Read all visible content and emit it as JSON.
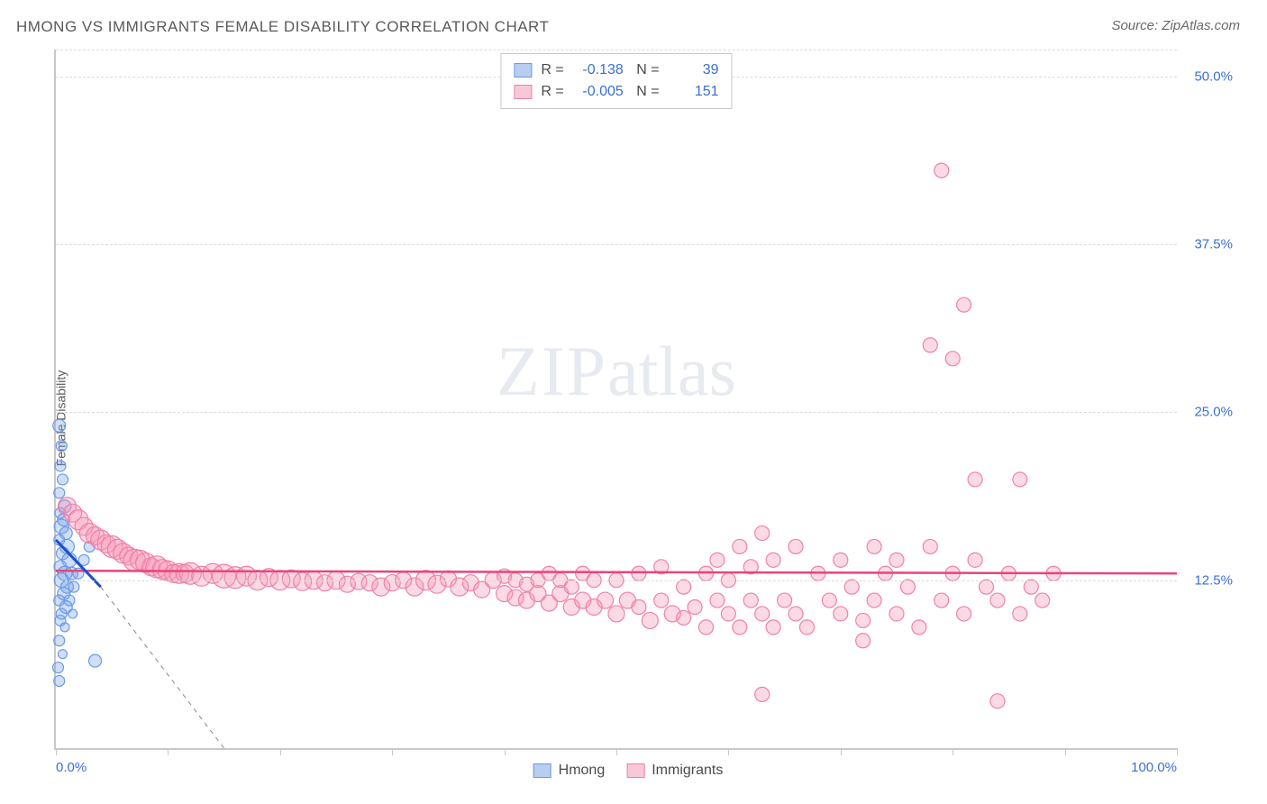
{
  "title": "HMONG VS IMMIGRANTS FEMALE DISABILITY CORRELATION CHART",
  "source": "Source: ZipAtlas.com",
  "ylabel": "Female Disability",
  "watermark": {
    "zip": "ZIP",
    "atlas": "atlas"
  },
  "chart": {
    "type": "scatter",
    "xlim": [
      0,
      100
    ],
    "ylim": [
      0,
      52
    ],
    "xticks": [
      0,
      10,
      20,
      30,
      40,
      50,
      60,
      70,
      80,
      90,
      100
    ],
    "xtick_labels": {
      "0": "0.0%",
      "100": "100.0%"
    },
    "yticks": [
      12.5,
      25.0,
      37.5,
      50.0
    ],
    "ytick_labels": [
      "12.5%",
      "25.0%",
      "37.5%",
      "50.0%"
    ],
    "grid_color": "#dcdcdc",
    "axis_color": "#c8c8c8",
    "background": "#ffffff",
    "series": [
      {
        "name": "Hmong",
        "color_fill": "rgba(120,160,230,0.35)",
        "color_stroke": "#6a9be8",
        "swatch_fill": "#b8cdf0",
        "swatch_border": "#6a9be8",
        "R": "-0.138",
        "N": "39",
        "trend": {
          "x1": 0,
          "y1": 15.5,
          "x2": 4,
          "y2": 12.0,
          "dash_x2": 15,
          "dash_y2": 0,
          "color": "#1a4fd0"
        },
        "points": [
          {
            "x": 0.3,
            "y": 24,
            "r": 7
          },
          {
            "x": 0.5,
            "y": 22.5,
            "r": 6
          },
          {
            "x": 0.4,
            "y": 21,
            "r": 6
          },
          {
            "x": 0.6,
            "y": 20,
            "r": 6
          },
          {
            "x": 0.3,
            "y": 19,
            "r": 6
          },
          {
            "x": 0.8,
            "y": 18,
            "r": 7
          },
          {
            "x": 0.4,
            "y": 17.5,
            "r": 6
          },
          {
            "x": 0.7,
            "y": 17,
            "r": 7
          },
          {
            "x": 0.5,
            "y": 16.5,
            "r": 8
          },
          {
            "x": 0.9,
            "y": 16,
            "r": 7
          },
          {
            "x": 0.3,
            "y": 15.5,
            "r": 6
          },
          {
            "x": 1.0,
            "y": 15,
            "r": 8
          },
          {
            "x": 0.6,
            "y": 14.5,
            "r": 7
          },
          {
            "x": 1.2,
            "y": 14,
            "r": 8
          },
          {
            "x": 0.4,
            "y": 13.5,
            "r": 7
          },
          {
            "x": 0.8,
            "y": 13,
            "r": 8
          },
          {
            "x": 1.4,
            "y": 13,
            "r": 7
          },
          {
            "x": 0.5,
            "y": 12.5,
            "r": 8
          },
          {
            "x": 1.0,
            "y": 12,
            "r": 7
          },
          {
            "x": 1.6,
            "y": 12,
            "r": 6
          },
          {
            "x": 0.7,
            "y": 11.5,
            "r": 7
          },
          {
            "x": 0.3,
            "y": 11,
            "r": 6
          },
          {
            "x": 1.2,
            "y": 11,
            "r": 6
          },
          {
            "x": 0.9,
            "y": 10.5,
            "r": 7
          },
          {
            "x": 0.5,
            "y": 10,
            "r": 6
          },
          {
            "x": 1.5,
            "y": 10,
            "r": 5
          },
          {
            "x": 0.4,
            "y": 9.5,
            "r": 6
          },
          {
            "x": 0.8,
            "y": 9,
            "r": 5
          },
          {
            "x": 0.3,
            "y": 8,
            "r": 6
          },
          {
            "x": 0.6,
            "y": 7,
            "r": 5
          },
          {
            "x": 0.2,
            "y": 6,
            "r": 6
          },
          {
            "x": 0.3,
            "y": 5,
            "r": 6
          },
          {
            "x": 3.5,
            "y": 6.5,
            "r": 7
          },
          {
            "x": 3.0,
            "y": 15,
            "r": 6
          },
          {
            "x": 2.5,
            "y": 14,
            "r": 6
          },
          {
            "x": 2.0,
            "y": 13,
            "r": 6
          }
        ]
      },
      {
        "name": "Immigrants",
        "color_fill": "rgba(245,150,180,0.35)",
        "color_stroke": "#f080a8",
        "swatch_fill": "#f8c8d8",
        "swatch_border": "#f080a8",
        "R": "-0.005",
        "N": "151",
        "trend": {
          "x1": 0,
          "y1": 13.2,
          "x2": 100,
          "y2": 13.0,
          "color": "#e8457a"
        },
        "points": [
          {
            "x": 1,
            "y": 18,
            "r": 10
          },
          {
            "x": 1.5,
            "y": 17.5,
            "r": 10
          },
          {
            "x": 2,
            "y": 17,
            "r": 11
          },
          {
            "x": 2.5,
            "y": 16.5,
            "r": 10
          },
          {
            "x": 3,
            "y": 16,
            "r": 11
          },
          {
            "x": 3.5,
            "y": 15.8,
            "r": 10
          },
          {
            "x": 4,
            "y": 15.5,
            "r": 11
          },
          {
            "x": 4.5,
            "y": 15.2,
            "r": 10
          },
          {
            "x": 5,
            "y": 15,
            "r": 12
          },
          {
            "x": 5.5,
            "y": 14.8,
            "r": 11
          },
          {
            "x": 6,
            "y": 14.5,
            "r": 11
          },
          {
            "x": 6.5,
            "y": 14.3,
            "r": 10
          },
          {
            "x": 7,
            "y": 14,
            "r": 12
          },
          {
            "x": 7.5,
            "y": 14,
            "r": 11
          },
          {
            "x": 8,
            "y": 13.8,
            "r": 11
          },
          {
            "x": 8.5,
            "y": 13.5,
            "r": 10
          },
          {
            "x": 9,
            "y": 13.5,
            "r": 12
          },
          {
            "x": 9.5,
            "y": 13.3,
            "r": 11
          },
          {
            "x": 10,
            "y": 13.2,
            "r": 11
          },
          {
            "x": 10.5,
            "y": 13,
            "r": 10
          },
          {
            "x": 11,
            "y": 13,
            "r": 11
          },
          {
            "x": 11.5,
            "y": 13,
            "r": 10
          },
          {
            "x": 12,
            "y": 13,
            "r": 12
          },
          {
            "x": 13,
            "y": 12.8,
            "r": 11
          },
          {
            "x": 14,
            "y": 13,
            "r": 11
          },
          {
            "x": 15,
            "y": 12.8,
            "r": 13
          },
          {
            "x": 16,
            "y": 12.7,
            "r": 12
          },
          {
            "x": 17,
            "y": 12.8,
            "r": 11
          },
          {
            "x": 18,
            "y": 12.5,
            "r": 11
          },
          {
            "x": 19,
            "y": 12.7,
            "r": 10
          },
          {
            "x": 20,
            "y": 12.5,
            "r": 11
          },
          {
            "x": 21,
            "y": 12.6,
            "r": 10
          },
          {
            "x": 22,
            "y": 12.4,
            "r": 10
          },
          {
            "x": 23,
            "y": 12.5,
            "r": 10
          },
          {
            "x": 24,
            "y": 12.3,
            "r": 9
          },
          {
            "x": 25,
            "y": 12.5,
            "r": 10
          },
          {
            "x": 26,
            "y": 12.2,
            "r": 9
          },
          {
            "x": 27,
            "y": 12.4,
            "r": 9
          },
          {
            "x": 28,
            "y": 12.3,
            "r": 9
          },
          {
            "x": 29,
            "y": 12,
            "r": 10
          },
          {
            "x": 30,
            "y": 12.3,
            "r": 9
          },
          {
            "x": 31,
            "y": 12.5,
            "r": 9
          },
          {
            "x": 32,
            "y": 12,
            "r": 10
          },
          {
            "x": 33,
            "y": 12.5,
            "r": 11
          },
          {
            "x": 34,
            "y": 12.2,
            "r": 10
          },
          {
            "x": 35,
            "y": 12.6,
            "r": 9
          },
          {
            "x": 36,
            "y": 12,
            "r": 10
          },
          {
            "x": 37,
            "y": 12.3,
            "r": 9
          },
          {
            "x": 38,
            "y": 11.8,
            "r": 9
          },
          {
            "x": 39,
            "y": 12.5,
            "r": 9
          },
          {
            "x": 40,
            "y": 11.5,
            "r": 9
          },
          {
            "x": 40,
            "y": 12.8,
            "r": 8
          },
          {
            "x": 41,
            "y": 11.2,
            "r": 9
          },
          {
            "x": 41,
            "y": 12.5,
            "r": 8
          },
          {
            "x": 42,
            "y": 11,
            "r": 9
          },
          {
            "x": 42,
            "y": 12.2,
            "r": 8
          },
          {
            "x": 43,
            "y": 11.5,
            "r": 9
          },
          {
            "x": 43,
            "y": 12.5,
            "r": 8
          },
          {
            "x": 44,
            "y": 10.8,
            "r": 9
          },
          {
            "x": 44,
            "y": 13,
            "r": 8
          },
          {
            "x": 45,
            "y": 11.5,
            "r": 9
          },
          {
            "x": 45,
            "y": 12.5,
            "r": 8
          },
          {
            "x": 46,
            "y": 10.5,
            "r": 9
          },
          {
            "x": 46,
            "y": 12,
            "r": 8
          },
          {
            "x": 47,
            "y": 11,
            "r": 9
          },
          {
            "x": 47,
            "y": 13,
            "r": 8
          },
          {
            "x": 48,
            "y": 10.5,
            "r": 9
          },
          {
            "x": 48,
            "y": 12.5,
            "r": 8
          },
          {
            "x": 49,
            "y": 11,
            "r": 9
          },
          {
            "x": 50,
            "y": 10,
            "r": 9
          },
          {
            "x": 50,
            "y": 12.5,
            "r": 8
          },
          {
            "x": 51,
            "y": 11,
            "r": 9
          },
          {
            "x": 52,
            "y": 10.5,
            "r": 8
          },
          {
            "x": 52,
            "y": 13,
            "r": 8
          },
          {
            "x": 53,
            "y": 9.5,
            "r": 9
          },
          {
            "x": 54,
            "y": 11,
            "r": 8
          },
          {
            "x": 54,
            "y": 13.5,
            "r": 8
          },
          {
            "x": 55,
            "y": 10,
            "r": 9
          },
          {
            "x": 56,
            "y": 9.7,
            "r": 8
          },
          {
            "x": 56,
            "y": 12,
            "r": 8
          },
          {
            "x": 57,
            "y": 10.5,
            "r": 8
          },
          {
            "x": 58,
            "y": 9,
            "r": 8
          },
          {
            "x": 58,
            "y": 13,
            "r": 8
          },
          {
            "x": 59,
            "y": 11,
            "r": 8
          },
          {
            "x": 59,
            "y": 14,
            "r": 8
          },
          {
            "x": 60,
            "y": 10,
            "r": 8
          },
          {
            "x": 60,
            "y": 12.5,
            "r": 8
          },
          {
            "x": 61,
            "y": 9,
            "r": 8
          },
          {
            "x": 61,
            "y": 15,
            "r": 8
          },
          {
            "x": 62,
            "y": 11,
            "r": 8
          },
          {
            "x": 62,
            "y": 13.5,
            "r": 8
          },
          {
            "x": 63,
            "y": 10,
            "r": 8
          },
          {
            "x": 63,
            "y": 16,
            "r": 8
          },
          {
            "x": 64,
            "y": 9,
            "r": 8
          },
          {
            "x": 64,
            "y": 14,
            "r": 8
          },
          {
            "x": 65,
            "y": 11,
            "r": 8
          },
          {
            "x": 66,
            "y": 10,
            "r": 8
          },
          {
            "x": 66,
            "y": 15,
            "r": 8
          },
          {
            "x": 67,
            "y": 9,
            "r": 8
          },
          {
            "x": 68,
            "y": 13,
            "r": 8
          },
          {
            "x": 69,
            "y": 11,
            "r": 8
          },
          {
            "x": 70,
            "y": 10,
            "r": 8
          },
          {
            "x": 70,
            "y": 14,
            "r": 8
          },
          {
            "x": 71,
            "y": 12,
            "r": 8
          },
          {
            "x": 72,
            "y": 9.5,
            "r": 8
          },
          {
            "x": 73,
            "y": 15,
            "r": 8
          },
          {
            "x": 73,
            "y": 11,
            "r": 8
          },
          {
            "x": 74,
            "y": 13,
            "r": 8
          },
          {
            "x": 75,
            "y": 10,
            "r": 8
          },
          {
            "x": 75,
            "y": 14,
            "r": 8
          },
          {
            "x": 76,
            "y": 12,
            "r": 8
          },
          {
            "x": 77,
            "y": 9,
            "r": 8
          },
          {
            "x": 78,
            "y": 15,
            "r": 8
          },
          {
            "x": 78,
            "y": 30,
            "r": 8
          },
          {
            "x": 79,
            "y": 11,
            "r": 8
          },
          {
            "x": 79,
            "y": 43,
            "r": 8
          },
          {
            "x": 80,
            "y": 13,
            "r": 8
          },
          {
            "x": 80,
            "y": 29,
            "r": 8
          },
          {
            "x": 81,
            "y": 10,
            "r": 8
          },
          {
            "x": 81,
            "y": 33,
            "r": 8
          },
          {
            "x": 82,
            "y": 14,
            "r": 8
          },
          {
            "x": 82,
            "y": 20,
            "r": 8
          },
          {
            "x": 83,
            "y": 12,
            "r": 8
          },
          {
            "x": 84,
            "y": 3.5,
            "r": 8
          },
          {
            "x": 84,
            "y": 11,
            "r": 8
          },
          {
            "x": 85,
            "y": 13,
            "r": 8
          },
          {
            "x": 86,
            "y": 10,
            "r": 8
          },
          {
            "x": 86,
            "y": 20,
            "r": 8
          },
          {
            "x": 87,
            "y": 12,
            "r": 8
          },
          {
            "x": 88,
            "y": 11,
            "r": 8
          },
          {
            "x": 89,
            "y": 13,
            "r": 8
          },
          {
            "x": 63,
            "y": 4,
            "r": 8
          },
          {
            "x": 72,
            "y": 8,
            "r": 8
          }
        ]
      }
    ]
  },
  "legend_bottom": [
    {
      "label": "Hmong",
      "series": 0
    },
    {
      "label": "Immigrants",
      "series": 1
    }
  ]
}
